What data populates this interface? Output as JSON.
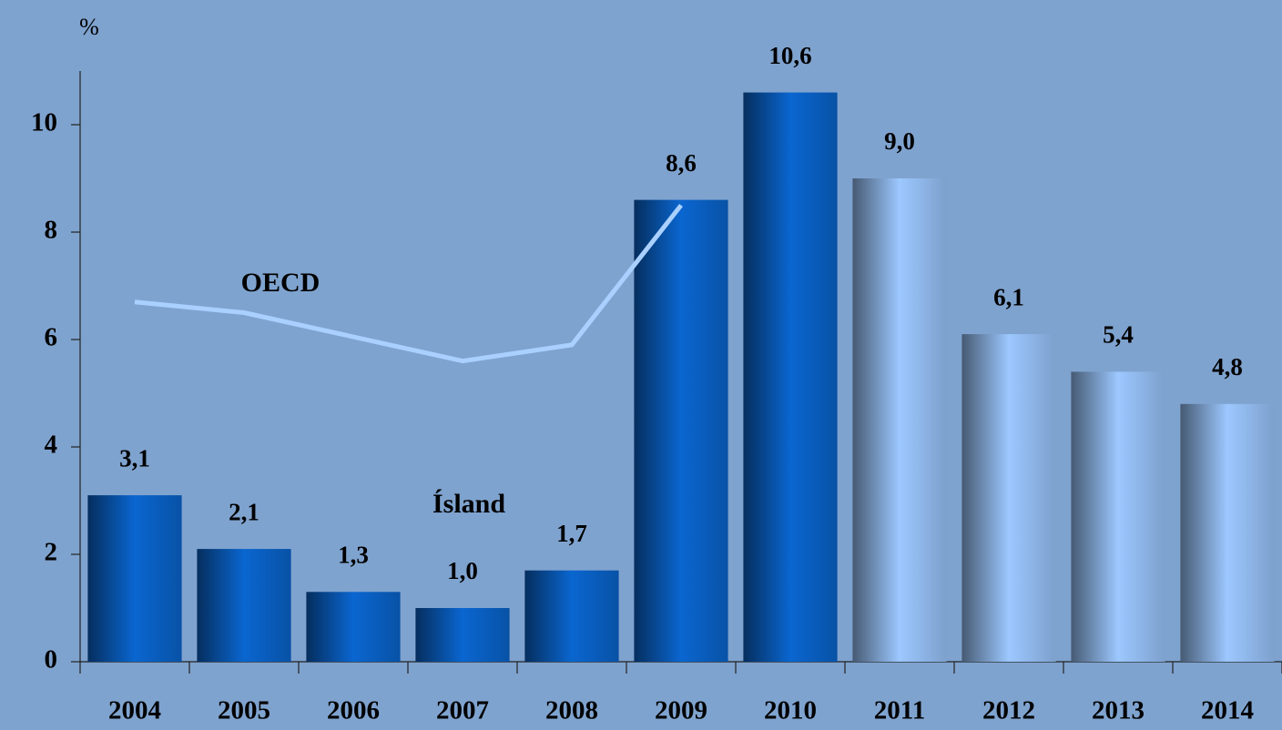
{
  "chart_data": {
    "type": "bar",
    "y_label": "%",
    "categories": [
      "2004",
      "2005",
      "2006",
      "2007",
      "2008",
      "2009",
      "2010",
      "2011",
      "2012",
      "2013",
      "2014"
    ],
    "series": [
      {
        "name": "Ísland",
        "type": "bar",
        "colors": [
          "#0a66d0",
          "#0a66d0",
          "#0a66d0",
          "#0a66d0",
          "#0a66d0",
          "#0a66d0",
          "#0a66d0",
          "#9cc8ff",
          "#9cc8ff",
          "#9cc8ff",
          "#9cc8ff"
        ],
        "values": [
          3.1,
          2.1,
          1.3,
          1.0,
          1.7,
          8.6,
          10.6,
          9.0,
          6.1,
          5.4,
          4.8
        ],
        "value_labels": [
          "3,1",
          "2,1",
          "1,3",
          "1,0",
          "1,7",
          "8,6",
          "10,6",
          "9,0",
          "6,1",
          "5,4",
          "4,8"
        ]
      },
      {
        "name": "OECD",
        "type": "line",
        "color": "#a9d0ff",
        "values": [
          6.7,
          6.5,
          6.05,
          5.6,
          5.9,
          8.5,
          null,
          null,
          null,
          null,
          null
        ]
      }
    ],
    "ylim": [
      0,
      11
    ],
    "yticks": [
      0,
      2,
      4,
      6,
      8,
      10
    ]
  }
}
